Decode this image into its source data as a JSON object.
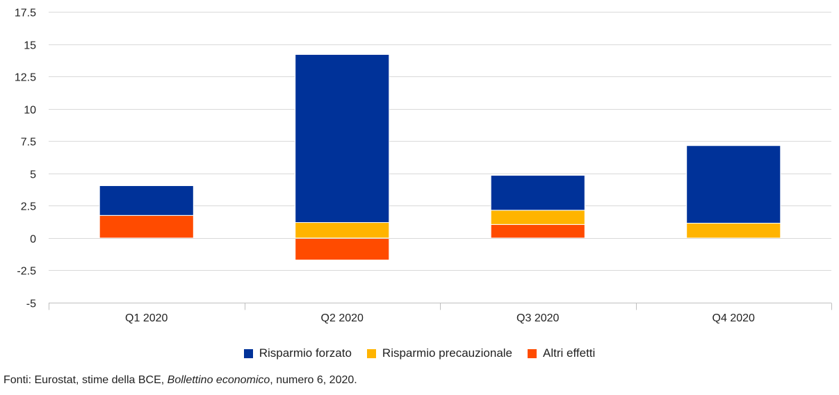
{
  "chart_data": {
    "type": "bar",
    "stacked": true,
    "categories": [
      "Q1 2020",
      "Q2 2020",
      "Q3 2020",
      "Q4 2020"
    ],
    "series": [
      {
        "name": "Risparmio forzato",
        "color": "#003299",
        "values": [
          2.3,
          13.0,
          2.7,
          6.0
        ]
      },
      {
        "name": "Risparmio precauzionale",
        "color": "#FFB400",
        "values": [
          0.0,
          1.2,
          1.1,
          1.15
        ]
      },
      {
        "name": "Altri effetti",
        "color": "#FF4B00",
        "values": [
          1.75,
          -1.7,
          1.05,
          0.0
        ]
      }
    ],
    "ylim": [
      -5,
      17.5
    ],
    "yticks": [
      "17.5",
      "15",
      "12.5",
      "10",
      "7.5",
      "5",
      "2.5",
      "0",
      "-2.5",
      "-5"
    ],
    "grid": true,
    "legend_position": "bottom-center"
  },
  "source": {
    "prefix": "Fonti: Eurostat, stime della BCE, ",
    "italic": "Bollettino economico",
    "suffix": ", numero 6, 2020."
  }
}
